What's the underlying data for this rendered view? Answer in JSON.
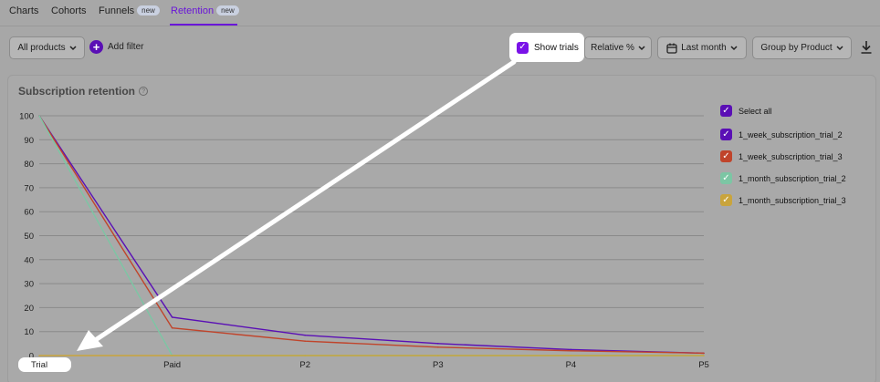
{
  "tabs": [
    {
      "label": "Charts"
    },
    {
      "label": "Cohorts"
    },
    {
      "label": "Funnels",
      "badge": "new"
    },
    {
      "label": "Retention",
      "badge": "new"
    }
  ],
  "toolbar": {
    "products": "All products",
    "add_filter": "Add filter",
    "show_trials": "Show trials",
    "relative": "Relative %",
    "period": "Last month",
    "group_by": "Group by Product"
  },
  "panel": {
    "title": "Subscription retention"
  },
  "legend": {
    "select_all": "Select all",
    "items": [
      {
        "label": "1_week_subscription_trial_2",
        "color": "#5a0fb5"
      },
      {
        "label": "1_week_subscription_trial_3",
        "color": "#c0442b"
      },
      {
        "label": "1_month_subscription_trial_2",
        "color": "#7cc6a4"
      },
      {
        "label": "1_month_subscription_trial_3",
        "color": "#c9a43c"
      }
    ]
  },
  "colors": {
    "accent": "#6a16d8",
    "highlight": "#ffffff"
  },
  "chart_data": {
    "type": "line",
    "categories": [
      "Trial",
      "Paid",
      "P2",
      "P3",
      "P4",
      "P5"
    ],
    "ylim": [
      0,
      100
    ],
    "yticks": [
      0,
      10,
      20,
      30,
      40,
      50,
      60,
      70,
      80,
      90,
      100
    ],
    "series": [
      {
        "name": "1_week_subscription_trial_2",
        "color": "#5a0fb5",
        "values": [
          100,
          16,
          8.5,
          5,
          2.5,
          1
        ]
      },
      {
        "name": "1_week_subscription_trial_3",
        "color": "#c0442b",
        "values": [
          100,
          11.5,
          6,
          3.5,
          2,
          1
        ]
      },
      {
        "name": "1_month_subscription_trial_2",
        "color": "#7cc6a4",
        "values": [
          100,
          0,
          0,
          0,
          0,
          0
        ]
      },
      {
        "name": "1_month_subscription_trial_3",
        "color": "#c9a43c",
        "values": [
          0,
          0,
          0,
          0,
          0,
          0
        ]
      }
    ]
  }
}
